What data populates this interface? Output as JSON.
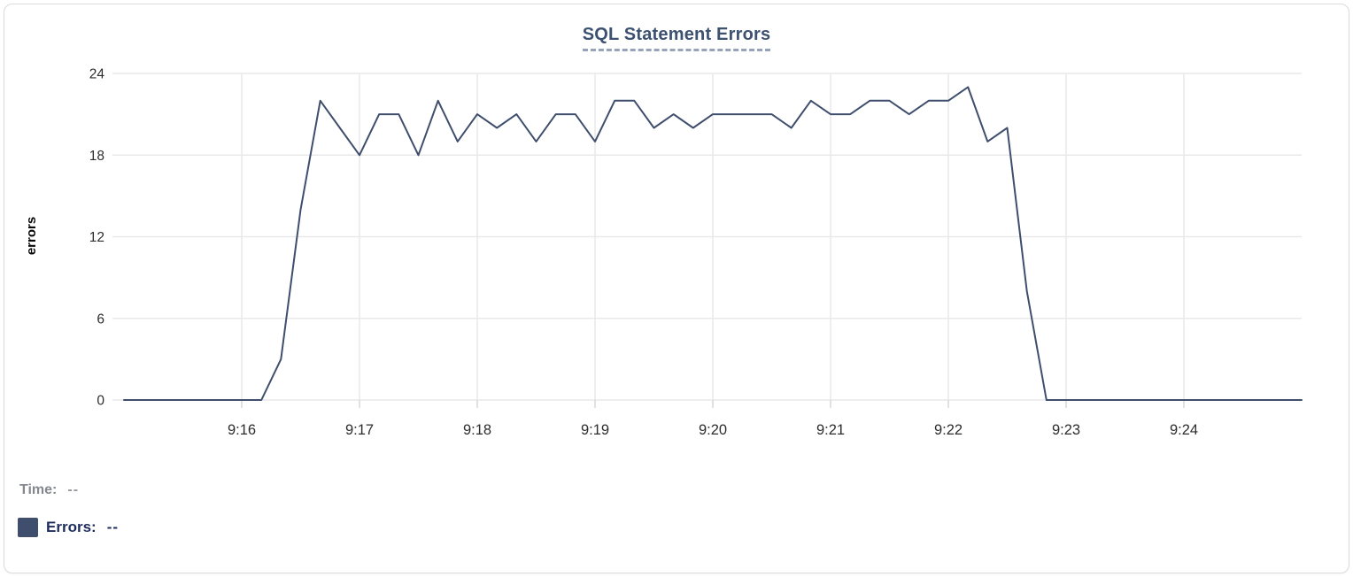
{
  "legend": {
    "time_label": "Time:",
    "time_value": "--",
    "errors_label": "Errors:",
    "errors_value": "--"
  },
  "colors": {
    "line": "#3f4e6d",
    "swatch": "#3f4e6d",
    "title": "#3d5170",
    "title_underline": "#97a3b9",
    "errors_legend_text": "#1e2c5e",
    "time_legend_text": "#85898f",
    "gridline": "#e9e9e9",
    "tick_mark": "#d7d7d7",
    "tick_text": "#2d2d2d"
  },
  "chart_data": {
    "type": "line",
    "title": "SQL Statement Errors",
    "xlabel": "",
    "ylabel": "errors",
    "ylim": [
      0,
      24
    ],
    "y_ticks": [
      0,
      6,
      12,
      18,
      24
    ],
    "x_tick_labels": [
      "9:16",
      "9:17",
      "9:18",
      "9:19",
      "9:20",
      "9:21",
      "9:22",
      "9:23",
      "9:24"
    ],
    "grid": true,
    "legend_position": "bottom-left",
    "line_color": "#3f4e6d",
    "x": [
      "9:15:00",
      "9:15:10",
      "9:15:20",
      "9:15:30",
      "9:15:40",
      "9:15:50",
      "9:16:00",
      "9:16:10",
      "9:16:20",
      "9:16:30",
      "9:16:40",
      "9:16:50",
      "9:17:00",
      "9:17:10",
      "9:17:20",
      "9:17:30",
      "9:17:40",
      "9:17:50",
      "9:18:00",
      "9:18:10",
      "9:18:20",
      "9:18:30",
      "9:18:40",
      "9:18:50",
      "9:19:00",
      "9:19:10",
      "9:19:20",
      "9:19:30",
      "9:19:40",
      "9:19:50",
      "9:20:00",
      "9:20:10",
      "9:20:20",
      "9:20:30",
      "9:20:40",
      "9:20:50",
      "9:21:00",
      "9:21:10",
      "9:21:20",
      "9:21:30",
      "9:21:40",
      "9:21:50",
      "9:22:00",
      "9:22:10",
      "9:22:20",
      "9:22:30",
      "9:22:40",
      "9:22:50",
      "9:23:00",
      "9:23:10",
      "9:23:20",
      "9:23:30",
      "9:23:40",
      "9:23:50",
      "9:24:00",
      "9:24:10",
      "9:24:20",
      "9:24:30",
      "9:24:40",
      "9:24:50",
      "9:25:00"
    ],
    "series": [
      {
        "name": "Errors",
        "values": [
          0,
          0,
          0,
          0,
          0,
          0,
          0,
          0,
          3,
          14,
          22,
          20,
          18,
          21,
          21,
          18,
          22,
          19,
          21,
          20,
          21,
          19,
          21,
          21,
          19,
          22,
          22,
          20,
          21,
          20,
          21,
          21,
          21,
          21,
          20,
          22,
          21,
          21,
          22,
          22,
          21,
          22,
          22,
          23,
          19,
          20,
          8,
          0,
          0,
          0,
          0,
          0,
          0,
          0,
          0,
          0,
          0,
          0,
          0,
          0,
          0
        ]
      }
    ]
  }
}
